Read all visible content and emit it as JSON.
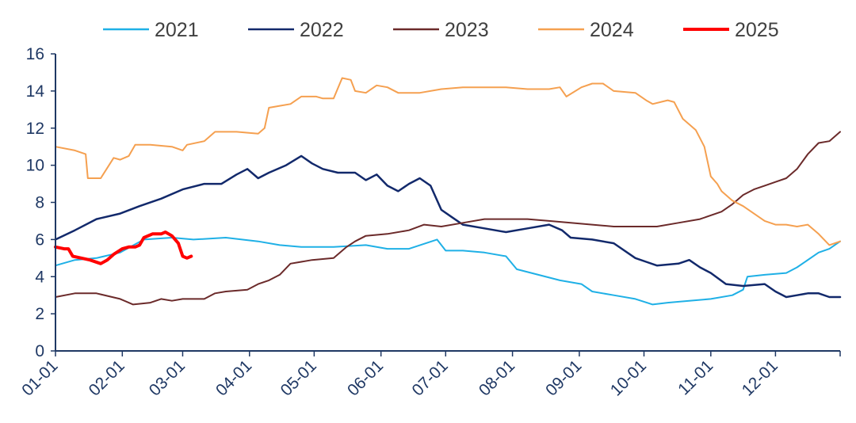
{
  "chart_data": {
    "type": "line",
    "title": "",
    "xlabel": "",
    "ylabel": "",
    "ylim": [
      0,
      16
    ],
    "yticks": [
      "0",
      "2",
      "4",
      "6",
      "8",
      "10",
      "12",
      "14",
      "16"
    ],
    "xticks": [
      "01-01",
      "02-01",
      "03-01",
      "04-01",
      "05-01",
      "06-01",
      "07-01",
      "08-01",
      "09-01",
      "10-01",
      "11-01",
      "12-01"
    ],
    "x_unit": "day of year",
    "grid": false,
    "legend_position": "top",
    "series": [
      {
        "name": "2021",
        "color": "#1fb0e6",
        "width": 2,
        "points": [
          [
            1,
            4.6
          ],
          [
            10,
            4.9
          ],
          [
            20,
            5.0
          ],
          [
            31,
            5.3
          ],
          [
            42,
            6.0
          ],
          [
            55,
            6.1
          ],
          [
            65,
            6.0
          ],
          [
            80,
            6.1
          ],
          [
            95,
            5.9
          ],
          [
            105,
            5.7
          ],
          [
            115,
            5.6
          ],
          [
            130,
            5.6
          ],
          [
            145,
            5.7
          ],
          [
            155,
            5.5
          ],
          [
            165,
            5.5
          ],
          [
            178,
            6.0
          ],
          [
            182,
            5.4
          ],
          [
            190,
            5.4
          ],
          [
            200,
            5.3
          ],
          [
            210,
            5.1
          ],
          [
            215,
            4.4
          ],
          [
            225,
            4.1
          ],
          [
            235,
            3.8
          ],
          [
            245,
            3.6
          ],
          [
            250,
            3.2
          ],
          [
            260,
            3.0
          ],
          [
            270,
            2.8
          ],
          [
            278,
            2.5
          ],
          [
            285,
            2.6
          ],
          [
            295,
            2.7
          ],
          [
            305,
            2.8
          ],
          [
            315,
            3.0
          ],
          [
            320,
            3.3
          ],
          [
            322,
            4.0
          ],
          [
            330,
            4.1
          ],
          [
            340,
            4.2
          ],
          [
            345,
            4.5
          ],
          [
            355,
            5.3
          ],
          [
            360,
            5.5
          ],
          [
            365,
            5.9
          ]
        ]
      },
      {
        "name": "2022",
        "color": "#12296b",
        "width": 2.5,
        "points": [
          [
            1,
            6.0
          ],
          [
            10,
            6.5
          ],
          [
            20,
            7.1
          ],
          [
            31,
            7.4
          ],
          [
            40,
            7.8
          ],
          [
            50,
            8.2
          ],
          [
            60,
            8.7
          ],
          [
            70,
            9.0
          ],
          [
            78,
            9.0
          ],
          [
            85,
            9.5
          ],
          [
            90,
            9.8
          ],
          [
            95,
            9.3
          ],
          [
            100,
            9.6
          ],
          [
            108,
            10.0
          ],
          [
            115,
            10.5
          ],
          [
            120,
            10.1
          ],
          [
            125,
            9.8
          ],
          [
            132,
            9.6
          ],
          [
            140,
            9.6
          ],
          [
            145,
            9.2
          ],
          [
            150,
            9.5
          ],
          [
            155,
            8.9
          ],
          [
            160,
            8.6
          ],
          [
            165,
            9.0
          ],
          [
            170,
            9.3
          ],
          [
            175,
            8.9
          ],
          [
            180,
            7.6
          ],
          [
            185,
            7.2
          ],
          [
            190,
            6.8
          ],
          [
            200,
            6.6
          ],
          [
            210,
            6.4
          ],
          [
            220,
            6.6
          ],
          [
            230,
            6.8
          ],
          [
            236,
            6.5
          ],
          [
            240,
            6.1
          ],
          [
            250,
            6.0
          ],
          [
            260,
            5.8
          ],
          [
            270,
            5.0
          ],
          [
            275,
            4.8
          ],
          [
            280,
            4.6
          ],
          [
            290,
            4.7
          ],
          [
            295,
            4.9
          ],
          [
            300,
            4.5
          ],
          [
            305,
            4.2
          ],
          [
            312,
            3.6
          ],
          [
            320,
            3.5
          ],
          [
            330,
            3.6
          ],
          [
            335,
            3.2
          ],
          [
            340,
            2.9
          ],
          [
            345,
            3.0
          ],
          [
            350,
            3.1
          ],
          [
            355,
            3.1
          ],
          [
            360,
            2.9
          ],
          [
            365,
            2.9
          ]
        ]
      },
      {
        "name": "2023",
        "color": "#6b2a2a",
        "width": 2,
        "points": [
          [
            1,
            2.9
          ],
          [
            10,
            3.1
          ],
          [
            20,
            3.1
          ],
          [
            31,
            2.8
          ],
          [
            37,
            2.5
          ],
          [
            45,
            2.6
          ],
          [
            50,
            2.8
          ],
          [
            55,
            2.7
          ],
          [
            60,
            2.8
          ],
          [
            70,
            2.8
          ],
          [
            75,
            3.1
          ],
          [
            80,
            3.2
          ],
          [
            90,
            3.3
          ],
          [
            95,
            3.6
          ],
          [
            100,
            3.8
          ],
          [
            105,
            4.1
          ],
          [
            110,
            4.7
          ],
          [
            120,
            4.9
          ],
          [
            130,
            5.0
          ],
          [
            136,
            5.6
          ],
          [
            140,
            5.9
          ],
          [
            145,
            6.2
          ],
          [
            155,
            6.3
          ],
          [
            165,
            6.5
          ],
          [
            172,
            6.8
          ],
          [
            180,
            6.7
          ],
          [
            190,
            6.9
          ],
          [
            200,
            7.1
          ],
          [
            210,
            7.1
          ],
          [
            220,
            7.1
          ],
          [
            230,
            7.0
          ],
          [
            240,
            6.9
          ],
          [
            250,
            6.8
          ],
          [
            260,
            6.7
          ],
          [
            270,
            6.7
          ],
          [
            280,
            6.7
          ],
          [
            290,
            6.9
          ],
          [
            300,
            7.1
          ],
          [
            310,
            7.5
          ],
          [
            315,
            7.9
          ],
          [
            320,
            8.4
          ],
          [
            325,
            8.7
          ],
          [
            330,
            8.9
          ],
          [
            335,
            9.1
          ],
          [
            340,
            9.3
          ],
          [
            345,
            9.8
          ],
          [
            350,
            10.6
          ],
          [
            355,
            11.2
          ],
          [
            360,
            11.3
          ],
          [
            365,
            11.8
          ]
        ]
      },
      {
        "name": "2024",
        "color": "#f5a050",
        "width": 2,
        "points": [
          [
            1,
            11.0
          ],
          [
            10,
            10.8
          ],
          [
            15,
            10.6
          ],
          [
            16,
            9.3
          ],
          [
            22,
            9.3
          ],
          [
            28,
            10.4
          ],
          [
            31,
            10.3
          ],
          [
            35,
            10.5
          ],
          [
            38,
            11.1
          ],
          [
            45,
            11.1
          ],
          [
            55,
            11.0
          ],
          [
            60,
            10.8
          ],
          [
            62,
            11.1
          ],
          [
            70,
            11.3
          ],
          [
            75,
            11.8
          ],
          [
            85,
            11.8
          ],
          [
            95,
            11.7
          ],
          [
            98,
            12.0
          ],
          [
            100,
            13.1
          ],
          [
            105,
            13.2
          ],
          [
            110,
            13.3
          ],
          [
            115,
            13.7
          ],
          [
            122,
            13.7
          ],
          [
            125,
            13.6
          ],
          [
            130,
            13.6
          ],
          [
            134,
            14.7
          ],
          [
            138,
            14.6
          ],
          [
            140,
            14.0
          ],
          [
            145,
            13.9
          ],
          [
            150,
            14.3
          ],
          [
            155,
            14.2
          ],
          [
            160,
            13.9
          ],
          [
            170,
            13.9
          ],
          [
            180,
            14.1
          ],
          [
            190,
            14.2
          ],
          [
            200,
            14.2
          ],
          [
            210,
            14.2
          ],
          [
            220,
            14.1
          ],
          [
            230,
            14.1
          ],
          [
            235,
            14.2
          ],
          [
            238,
            13.7
          ],
          [
            245,
            14.2
          ],
          [
            250,
            14.4
          ],
          [
            255,
            14.4
          ],
          [
            260,
            14.0
          ],
          [
            270,
            13.9
          ],
          [
            275,
            13.5
          ],
          [
            278,
            13.3
          ],
          [
            285,
            13.5
          ],
          [
            288,
            13.4
          ],
          [
            292,
            12.5
          ],
          [
            298,
            11.9
          ],
          [
            302,
            11.0
          ],
          [
            305,
            9.4
          ],
          [
            308,
            9.0
          ],
          [
            310,
            8.6
          ],
          [
            315,
            8.1
          ],
          [
            320,
            7.8
          ],
          [
            330,
            7.0
          ],
          [
            335,
            6.8
          ],
          [
            340,
            6.8
          ],
          [
            345,
            6.7
          ],
          [
            350,
            6.8
          ],
          [
            355,
            6.3
          ],
          [
            360,
            5.7
          ],
          [
            365,
            5.9
          ]
        ]
      },
      {
        "name": "2025",
        "color": "#ff0000",
        "width": 4,
        "points": [
          [
            1,
            5.6
          ],
          [
            5,
            5.5
          ],
          [
            7,
            5.5
          ],
          [
            9,
            5.1
          ],
          [
            13,
            5.0
          ],
          [
            17,
            4.9
          ],
          [
            22,
            4.7
          ],
          [
            25,
            4.9
          ],
          [
            28,
            5.2
          ],
          [
            32,
            5.5
          ],
          [
            35,
            5.6
          ],
          [
            38,
            5.6
          ],
          [
            40,
            5.7
          ],
          [
            42,
            6.1
          ],
          [
            46,
            6.3
          ],
          [
            50,
            6.3
          ],
          [
            52,
            6.4
          ],
          [
            55,
            6.2
          ],
          [
            58,
            5.8
          ],
          [
            60,
            5.1
          ],
          [
            62,
            5.0
          ],
          [
            64,
            5.1
          ]
        ]
      }
    ]
  }
}
